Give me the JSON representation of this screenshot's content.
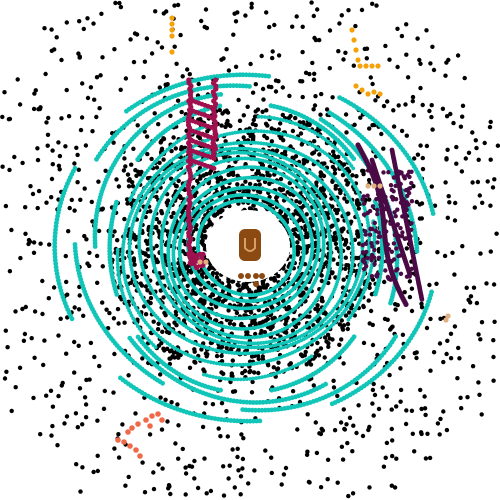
{
  "scene": {
    "background": "#ffffff",
    "colors": {
      "ground": "#11c5b8",
      "noise": "#000000",
      "near_field": "#000000",
      "clear_zone": "#ffffff",
      "ego_vehicle": "#8b4a12",
      "ego_vehicle_light": "#d9a066",
      "structure_magenta": "#a0104e",
      "structure_purple": "#4a0a45",
      "pole_orange": "#f5a20a",
      "object_salmon": "#f06a4a",
      "object_tan": "#e0b080"
    }
  }
}
